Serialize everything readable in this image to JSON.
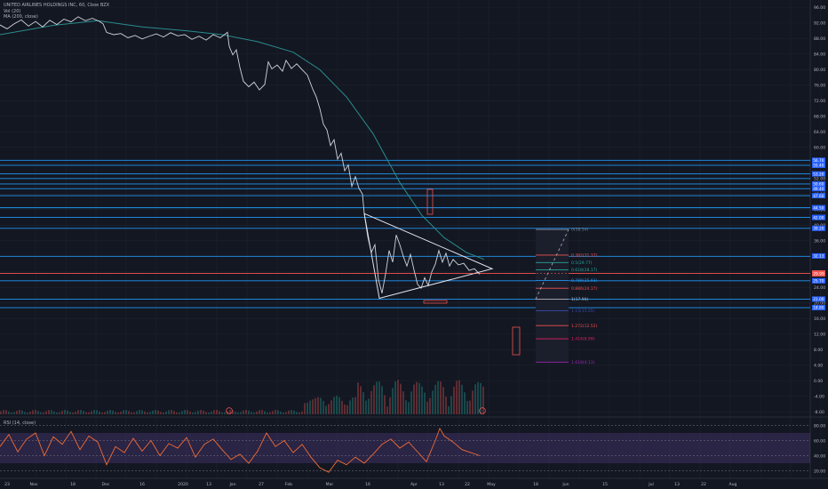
{
  "header": {
    "title": "UNITED AIRLINES HOLDINGS INC, 60, Cboe BZX",
    "vol_label": "Vol (20)",
    "ma_label": "MA (200, close)"
  },
  "rsi": {
    "label": "RSI (14, close)",
    "ticks": [
      "80.00",
      "60.00",
      "40.00",
      "20.00"
    ]
  },
  "chart_data": {
    "type": "line",
    "title": "UNITED AIRLINES HOLDINGS INC, 60, Cboe BZX",
    "price_ticks": [
      "96.00",
      "92.00",
      "88.00",
      "84.00",
      "80.00",
      "76.00",
      "72.00",
      "68.00",
      "64.00",
      "60.00",
      "56.00",
      "52.00",
      "48.00",
      "44.00",
      "40.00",
      "36.00",
      "32.00",
      "28.00",
      "24.00",
      "20.00",
      "16.00",
      "12.00",
      "8.00",
      "4.00",
      "0.00",
      "-4.00",
      "-8.00"
    ],
    "x_labels": [
      "23",
      "Nov",
      "18",
      "Dec",
      "16",
      "2020",
      "13",
      "Jan",
      "27",
      "Feb",
      "Mar",
      "16",
      "Apr",
      "13",
      "22",
      "May",
      "18",
      "Jun",
      "15",
      "Jul",
      "13",
      "22",
      "Aug"
    ],
    "price_series": [
      {
        "x": 0,
        "y": 91.5
      },
      {
        "x": 8,
        "y": 90.5
      },
      {
        "x": 16,
        "y": 91.8
      },
      {
        "x": 24,
        "y": 92.8
      },
      {
        "x": 32,
        "y": 91.2
      },
      {
        "x": 40,
        "y": 92.4
      },
      {
        "x": 48,
        "y": 91.0
      },
      {
        "x": 56,
        "y": 92.7
      },
      {
        "x": 64,
        "y": 91.6
      },
      {
        "x": 72,
        "y": 93.0
      },
      {
        "x": 80,
        "y": 92.3
      },
      {
        "x": 88,
        "y": 93.6
      },
      {
        "x": 96,
        "y": 92.6
      },
      {
        "x": 104,
        "y": 93.2
      },
      {
        "x": 112,
        "y": 92.4
      },
      {
        "x": 116,
        "y": 91.8
      },
      {
        "x": 120,
        "y": 89.6
      },
      {
        "x": 128,
        "y": 89.0
      },
      {
        "x": 136,
        "y": 89.3
      },
      {
        "x": 144,
        "y": 88.2
      },
      {
        "x": 152,
        "y": 88.8
      },
      {
        "x": 160,
        "y": 87.9
      },
      {
        "x": 168,
        "y": 88.6
      },
      {
        "x": 176,
        "y": 89.2
      },
      {
        "x": 184,
        "y": 88.4
      },
      {
        "x": 192,
        "y": 89.5
      },
      {
        "x": 200,
        "y": 88.7
      },
      {
        "x": 208,
        "y": 89.0
      },
      {
        "x": 216,
        "y": 87.8
      },
      {
        "x": 224,
        "y": 88.6
      },
      {
        "x": 232,
        "y": 87.6
      },
      {
        "x": 240,
        "y": 89.0
      },
      {
        "x": 248,
        "y": 88.2
      },
      {
        "x": 256,
        "y": 89.6
      },
      {
        "x": 258,
        "y": 86.0
      },
      {
        "x": 262,
        "y": 83.8
      },
      {
        "x": 266,
        "y": 85.1
      },
      {
        "x": 270,
        "y": 80.6
      },
      {
        "x": 274,
        "y": 77.0
      },
      {
        "x": 280,
        "y": 75.6
      },
      {
        "x": 286,
        "y": 76.8
      },
      {
        "x": 292,
        "y": 74.8
      },
      {
        "x": 298,
        "y": 76.2
      },
      {
        "x": 302,
        "y": 82.0
      },
      {
        "x": 306,
        "y": 80.2
      },
      {
        "x": 312,
        "y": 81.2
      },
      {
        "x": 318,
        "y": 79.6
      },
      {
        "x": 322,
        "y": 82.4
      },
      {
        "x": 328,
        "y": 80.3
      },
      {
        "x": 334,
        "y": 81.5
      },
      {
        "x": 340,
        "y": 80.0
      },
      {
        "x": 346,
        "y": 78.6
      },
      {
        "x": 352,
        "y": 75.0
      },
      {
        "x": 356,
        "y": 73.0
      },
      {
        "x": 360,
        "y": 70.0
      },
      {
        "x": 364,
        "y": 66.0
      },
      {
        "x": 368,
        "y": 64.5
      },
      {
        "x": 372,
        "y": 60.5
      },
      {
        "x": 376,
        "y": 62.0
      },
      {
        "x": 380,
        "y": 57.0
      },
      {
        "x": 384,
        "y": 58.5
      },
      {
        "x": 388,
        "y": 54.0
      },
      {
        "x": 392,
        "y": 55.5
      },
      {
        "x": 396,
        "y": 50.0
      },
      {
        "x": 400,
        "y": 52.5
      },
      {
        "x": 404,
        "y": 49.5
      },
      {
        "x": 408,
        "y": 48.0
      },
      {
        "x": 410,
        "y": 43.0
      },
      {
        "x": 414,
        "y": 37.0
      },
      {
        "x": 418,
        "y": 33.0
      },
      {
        "x": 422,
        "y": 35.0
      },
      {
        "x": 426,
        "y": 26.0
      },
      {
        "x": 430,
        "y": 22.5
      },
      {
        "x": 434,
        "y": 27.5
      },
      {
        "x": 438,
        "y": 33.5
      },
      {
        "x": 442,
        "y": 30.5
      },
      {
        "x": 446,
        "y": 37.5
      },
      {
        "x": 450,
        "y": 35.0
      },
      {
        "x": 454,
        "y": 32.0
      },
      {
        "x": 458,
        "y": 29.5
      },
      {
        "x": 462,
        "y": 32.5
      },
      {
        "x": 466,
        "y": 28.5
      },
      {
        "x": 470,
        "y": 24.8
      },
      {
        "x": 474,
        "y": 23.8
      },
      {
        "x": 478,
        "y": 26.5
      },
      {
        "x": 482,
        "y": 24.5
      },
      {
        "x": 486,
        "y": 28.0
      },
      {
        "x": 490,
        "y": 30.0
      },
      {
        "x": 494,
        "y": 33.5
      },
      {
        "x": 498,
        "y": 30.5
      },
      {
        "x": 502,
        "y": 32.8
      },
      {
        "x": 506,
        "y": 29.5
      },
      {
        "x": 510,
        "y": 31.2
      },
      {
        "x": 516,
        "y": 29.8
      },
      {
        "x": 522,
        "y": 30.2
      },
      {
        "x": 528,
        "y": 28.4
      },
      {
        "x": 534,
        "y": 28.8
      },
      {
        "x": 540,
        "y": 27.4
      }
    ],
    "ma200": [
      {
        "x": 0,
        "y": 89.0
      },
      {
        "x": 60,
        "y": 91.4
      },
      {
        "x": 110,
        "y": 92.6
      },
      {
        "x": 160,
        "y": 91.0
      },
      {
        "x": 210,
        "y": 90.0
      },
      {
        "x": 250,
        "y": 89.0
      },
      {
        "x": 290,
        "y": 87.2
      },
      {
        "x": 330,
        "y": 84.5
      },
      {
        "x": 360,
        "y": 80.0
      },
      {
        "x": 390,
        "y": 73.0
      },
      {
        "x": 420,
        "y": 63.5
      },
      {
        "x": 450,
        "y": 51.0
      },
      {
        "x": 475,
        "y": 42.5
      },
      {
        "x": 500,
        "y": 36.8
      },
      {
        "x": 525,
        "y": 33.0
      },
      {
        "x": 545,
        "y": 31.2
      }
    ],
    "triangle": [
      {
        "x": 410,
        "y": 43.0
      },
      {
        "x": 554,
        "y": 28.8
      },
      {
        "x": 427,
        "y": 21.2
      }
    ],
    "horizontal_levels": [
      {
        "y": 56.7,
        "label": "56.70",
        "color": "#2196f3"
      },
      {
        "y": 55.4,
        "label": "55.40",
        "color": "#2196f3"
      },
      {
        "y": 53.2,
        "label": "53.20",
        "color": "#2196f3"
      },
      {
        "y": 52.0,
        "label": "52.00",
        "color": "#2196f3"
      },
      {
        "y": 50.6,
        "label": "50.60",
        "color": "#2196f3"
      },
      {
        "y": 49.4,
        "label": "49.40",
        "color": "#2196f3"
      },
      {
        "y": 47.6,
        "label": "47.60",
        "color": "#2196f3"
      },
      {
        "y": 44.5,
        "label": "44.50",
        "color": "#2196f3"
      },
      {
        "y": 42.0,
        "label": "42.00",
        "color": "#2196f3"
      },
      {
        "y": 39.2,
        "label": "39.20",
        "color": "#2196f3"
      },
      {
        "y": 32.0,
        "label": "32.00",
        "color": "#2196f3"
      },
      {
        "y": 27.6,
        "label": "27.60",
        "color": "#ef5350"
      },
      {
        "y": 25.7,
        "label": "25.70",
        "color": "#2196f3"
      },
      {
        "y": 21.0,
        "label": "21.00",
        "color": "#2196f3"
      },
      {
        "y": 18.8,
        "label": "18.80",
        "color": "#2196f3"
      }
    ],
    "price_badges": [
      {
        "y": 56.7,
        "label": "56.70"
      },
      {
        "y": 55.4,
        "label": "55.40"
      },
      {
        "y": 53.2,
        "label": "53.20"
      },
      {
        "y": 50.6,
        "label": "50.60"
      },
      {
        "y": 49.4,
        "label": "49.40"
      },
      {
        "y": 47.6,
        "label": "47.60"
      },
      {
        "y": 44.5,
        "label": "44.50"
      },
      {
        "y": 42.0,
        "label": "42.00"
      },
      {
        "y": 39.2,
        "label": "39.20"
      },
      {
        "y": 32.1,
        "label": "32.13"
      },
      {
        "y": 25.7,
        "label": "25.70"
      },
      {
        "y": 21.0,
        "label": "21.00"
      },
      {
        "y": 18.8,
        "label": "18.80"
      }
    ],
    "current_price_label": "29.99",
    "fib_levels": [
      {
        "y": 38.9,
        "label": "0(38.54)",
        "color": "#787b86"
      },
      {
        "y": 32.3,
        "label": "0.382(31.37)",
        "color": "#ef5350"
      },
      {
        "y": 30.4,
        "label": "0.5(29.77)",
        "color": "#26a69a"
      },
      {
        "y": 28.5,
        "label": "0.618(28.17)",
        "color": "#26a69a"
      },
      {
        "y": 25.8,
        "label": "0.786(25.93)",
        "color": "#2196f3"
      },
      {
        "y": 23.8,
        "label": "0.886(24.17)",
        "color": "#ef5350"
      },
      {
        "y": 21.0,
        "label": "1(17.90)",
        "color": "#b2b5be"
      },
      {
        "y": 18.0,
        "label": "1.13(15.05)",
        "color": "#3949ab"
      },
      {
        "y": 14.2,
        "label": "1.272(12.52)",
        "color": "#ef5350"
      },
      {
        "y": 10.8,
        "label": "1.414(8.99)",
        "color": "#e91e63"
      },
      {
        "y": 4.8,
        "label": "1.618(4.13)",
        "color": "#9c27b0"
      }
    ],
    "rsi_series": [
      {
        "x": 0,
        "y": 52
      },
      {
        "x": 10,
        "y": 68
      },
      {
        "x": 20,
        "y": 45
      },
      {
        "x": 30,
        "y": 62
      },
      {
        "x": 40,
        "y": 70
      },
      {
        "x": 50,
        "y": 40
      },
      {
        "x": 60,
        "y": 65
      },
      {
        "x": 70,
        "y": 55
      },
      {
        "x": 80,
        "y": 72
      },
      {
        "x": 90,
        "y": 48
      },
      {
        "x": 100,
        "y": 66
      },
      {
        "x": 110,
        "y": 58
      },
      {
        "x": 120,
        "y": 28
      },
      {
        "x": 130,
        "y": 52
      },
      {
        "x": 140,
        "y": 44
      },
      {
        "x": 150,
        "y": 63
      },
      {
        "x": 160,
        "y": 46
      },
      {
        "x": 170,
        "y": 60
      },
      {
        "x": 180,
        "y": 40
      },
      {
        "x": 190,
        "y": 56
      },
      {
        "x": 200,
        "y": 50
      },
      {
        "x": 210,
        "y": 64
      },
      {
        "x": 220,
        "y": 38
      },
      {
        "x": 230,
        "y": 55
      },
      {
        "x": 240,
        "y": 62
      },
      {
        "x": 250,
        "y": 48
      },
      {
        "x": 260,
        "y": 35
      },
      {
        "x": 270,
        "y": 42
      },
      {
        "x": 280,
        "y": 30
      },
      {
        "x": 290,
        "y": 46
      },
      {
        "x": 300,
        "y": 70
      },
      {
        "x": 310,
        "y": 52
      },
      {
        "x": 320,
        "y": 60
      },
      {
        "x": 330,
        "y": 44
      },
      {
        "x": 340,
        "y": 55
      },
      {
        "x": 350,
        "y": 38
      },
      {
        "x": 360,
        "y": 24
      },
      {
        "x": 370,
        "y": 18
      },
      {
        "x": 380,
        "y": 34
      },
      {
        "x": 390,
        "y": 28
      },
      {
        "x": 400,
        "y": 38
      },
      {
        "x": 410,
        "y": 30
      },
      {
        "x": 420,
        "y": 42
      },
      {
        "x": 430,
        "y": 55
      },
      {
        "x": 440,
        "y": 62
      },
      {
        "x": 450,
        "y": 50
      },
      {
        "x": 460,
        "y": 58
      },
      {
        "x": 470,
        "y": 45
      },
      {
        "x": 480,
        "y": 32
      },
      {
        "x": 490,
        "y": 60
      },
      {
        "x": 495,
        "y": 76
      },
      {
        "x": 500,
        "y": 66
      },
      {
        "x": 510,
        "y": 58
      },
      {
        "x": 520,
        "y": 48
      },
      {
        "x": 530,
        "y": 44
      },
      {
        "x": 540,
        "y": 40
      }
    ],
    "ylim": [
      -10,
      97
    ],
    "rsi_ylim": [
      10,
      90
    ]
  }
}
